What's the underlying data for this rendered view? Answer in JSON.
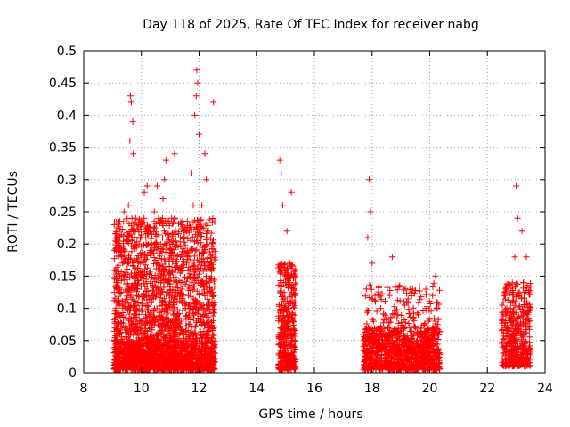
{
  "chart_data": {
    "type": "scatter",
    "title": "Day 118 of 2025, Rate Of TEC Index for receiver nabg",
    "xlabel": "GPS time / hours",
    "ylabel": "ROTI / TECUs",
    "xlim": [
      8,
      24
    ],
    "ylim": [
      0,
      0.5
    ],
    "xticks": [
      "8",
      "10",
      "12",
      "14",
      "16",
      "18",
      "20",
      "22",
      "24"
    ],
    "yticks": [
      "0",
      "0.05",
      "0.1",
      "0.15",
      "0.2",
      "0.25",
      "0.3",
      "0.35",
      "0.4",
      "0.45",
      "0.5"
    ],
    "grid": true,
    "marker": "+",
    "color": "#ff0000",
    "series": [
      {
        "points": [
          [
            9.1,
            0.02
          ],
          [
            9.15,
            0.13
          ],
          [
            9.2,
            0.03
          ],
          [
            9.25,
            0.15
          ],
          [
            9.3,
            0.05
          ],
          [
            9.35,
            0.17
          ],
          [
            9.4,
            0.25
          ],
          [
            9.45,
            0.1
          ],
          [
            9.5,
            0.03
          ],
          [
            9.55,
            0.26
          ],
          [
            9.6,
            0.36
          ],
          [
            9.62,
            0.43
          ],
          [
            9.65,
            0.42
          ],
          [
            9.7,
            0.39
          ],
          [
            9.72,
            0.34
          ],
          [
            9.75,
            0.08
          ],
          [
            9.8,
            0.24
          ],
          [
            9.85,
            0.05
          ],
          [
            9.9,
            0.12
          ],
          [
            9.95,
            0.23
          ],
          [
            10.0,
            0.03
          ],
          [
            10.05,
            0.15
          ],
          [
            10.1,
            0.28
          ],
          [
            10.15,
            0.09
          ],
          [
            10.2,
            0.29
          ],
          [
            10.25,
            0.02
          ],
          [
            10.3,
            0.19
          ],
          [
            10.35,
            0.12
          ],
          [
            10.4,
            0.05
          ],
          [
            10.45,
            0.25
          ],
          [
            10.5,
            0.08
          ],
          [
            10.55,
            0.29
          ],
          [
            10.6,
            0.14
          ],
          [
            10.7,
            0.03
          ],
          [
            10.75,
            0.27
          ],
          [
            10.8,
            0.3
          ],
          [
            10.85,
            0.33
          ],
          [
            10.9,
            0.06
          ],
          [
            10.95,
            0.21
          ],
          [
            11.0,
            0.11
          ],
          [
            11.05,
            0.24
          ],
          [
            11.1,
            0.02
          ],
          [
            11.15,
            0.34
          ],
          [
            11.2,
            0.16
          ],
          [
            11.3,
            0.07
          ],
          [
            11.35,
            0.21
          ],
          [
            11.4,
            0.13
          ],
          [
            11.5,
            0.04
          ],
          [
            11.55,
            0.22
          ],
          [
            11.6,
            0.18
          ],
          [
            11.7,
            0.1
          ],
          [
            11.75,
            0.31
          ],
          [
            11.8,
            0.26
          ],
          [
            11.85,
            0.4
          ],
          [
            11.9,
            0.43
          ],
          [
            11.92,
            0.47
          ],
          [
            11.95,
            0.45
          ],
          [
            12.0,
            0.37
          ],
          [
            12.05,
            0.14
          ],
          [
            12.1,
            0.26
          ],
          [
            12.15,
            0.09
          ],
          [
            12.2,
            0.34
          ],
          [
            12.25,
            0.3
          ],
          [
            12.3,
            0.21
          ],
          [
            12.35,
            0.07
          ],
          [
            12.4,
            0.17
          ],
          [
            12.45,
            0.12
          ],
          [
            12.5,
            0.42
          ],
          [
            12.55,
            0.03
          ],
          [
            14.8,
            0.33
          ],
          [
            14.85,
            0.31
          ],
          [
            14.9,
            0.26
          ],
          [
            14.95,
            0.04
          ],
          [
            15.0,
            0.14
          ],
          [
            15.05,
            0.22
          ],
          [
            15.1,
            0.08
          ],
          [
            15.15,
            0.17
          ],
          [
            15.2,
            0.28
          ],
          [
            15.25,
            0.05
          ],
          [
            15.3,
            0.11
          ],
          [
            17.75,
            0.02
          ],
          [
            17.8,
            0.13
          ],
          [
            17.85,
            0.21
          ],
          [
            17.9,
            0.3
          ],
          [
            17.95,
            0.25
          ],
          [
            18.0,
            0.17
          ],
          [
            18.05,
            0.08
          ],
          [
            18.1,
            0.12
          ],
          [
            18.2,
            0.04
          ],
          [
            18.3,
            0.1
          ],
          [
            18.4,
            0.06
          ],
          [
            18.5,
            0.03
          ],
          [
            18.6,
            0.12
          ],
          [
            18.7,
            0.18
          ],
          [
            18.8,
            0.05
          ],
          [
            18.9,
            0.09
          ],
          [
            19.0,
            0.03
          ],
          [
            19.1,
            0.11
          ],
          [
            19.2,
            0.04
          ],
          [
            19.3,
            0.07
          ],
          [
            19.4,
            0.13
          ],
          [
            19.5,
            0.02
          ],
          [
            19.6,
            0.09
          ],
          [
            19.7,
            0.05
          ],
          [
            19.8,
            0.03
          ],
          [
            19.9,
            0.1
          ],
          [
            20.0,
            0.04
          ],
          [
            20.1,
            0.12
          ],
          [
            20.2,
            0.15
          ],
          [
            20.3,
            0.06
          ],
          [
            22.55,
            0.03
          ],
          [
            22.6,
            0.12
          ],
          [
            22.7,
            0.07
          ],
          [
            22.8,
            0.1
          ],
          [
            22.9,
            0.05
          ],
          [
            22.95,
            0.18
          ],
          [
            23.0,
            0.29
          ],
          [
            23.05,
            0.24
          ],
          [
            23.1,
            0.12
          ],
          [
            23.15,
            0.06
          ],
          [
            23.2,
            0.22
          ],
          [
            23.25,
            0.14
          ],
          [
            23.3,
            0.03
          ],
          [
            23.35,
            0.18
          ],
          [
            23.4,
            0.09
          ]
        ],
        "bands": [
          {
            "x": [
              9.05,
              12.55
            ],
            "y": [
              0.005,
              0.24
            ],
            "n": 2000
          },
          {
            "x": [
              9.05,
              12.55
            ],
            "y": [
              0.005,
              0.05
            ],
            "n": 700
          },
          {
            "x": [
              14.75,
              15.35
            ],
            "y": [
              0.005,
              0.17
            ],
            "n": 380
          },
          {
            "x": [
              17.7,
              20.35
            ],
            "y": [
              0.005,
              0.07
            ],
            "n": 900
          },
          {
            "x": [
              17.7,
              20.35
            ],
            "y": [
              0.03,
              0.14
            ],
            "n": 250
          },
          {
            "x": [
              22.5,
              23.5
            ],
            "y": [
              0.01,
              0.14
            ],
            "n": 400
          }
        ]
      }
    ]
  }
}
